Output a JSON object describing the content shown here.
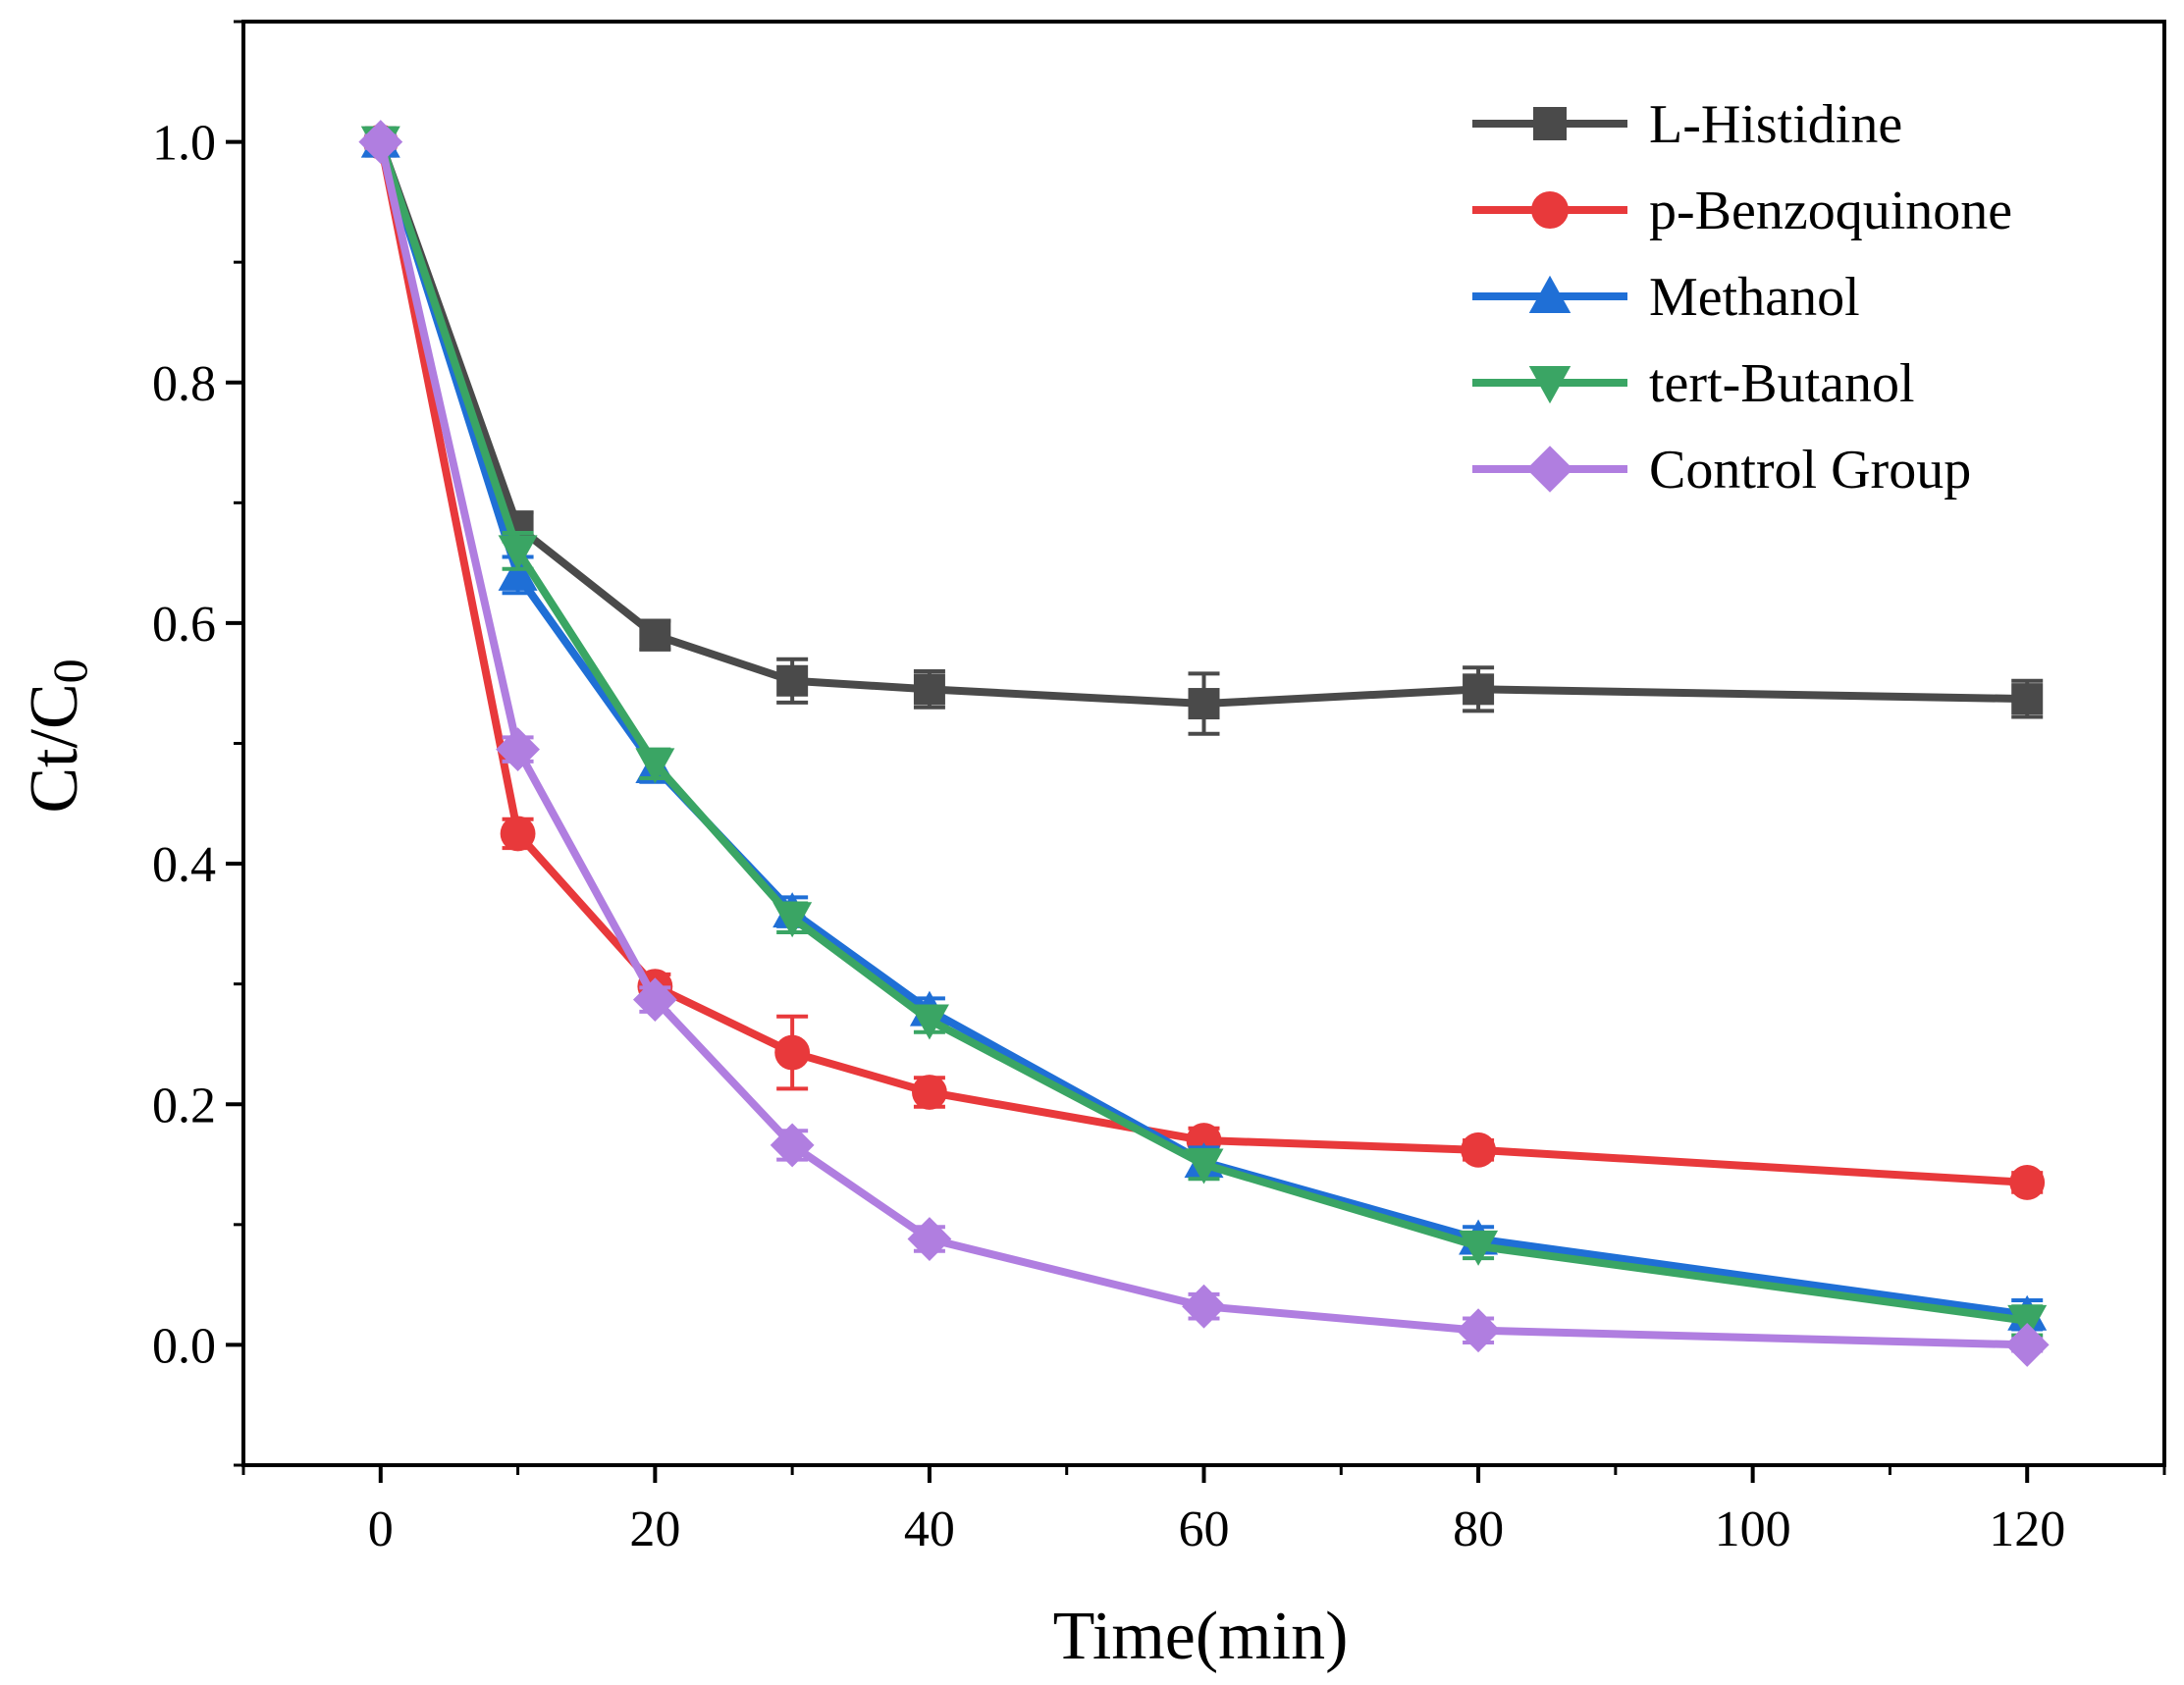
{
  "chart_data": {
    "type": "line",
    "title": "",
    "xlabel": "Time(min)",
    "ylabel": "Ct/C0",
    "ylabel_main": "Ct/C",
    "ylabel_sub": "0",
    "xlim": [
      -10,
      130
    ],
    "ylim": [
      -0.1,
      1.1
    ],
    "xticks": [
      0,
      20,
      40,
      60,
      80,
      100,
      120
    ],
    "yticks": [
      0.0,
      0.2,
      0.4,
      0.6,
      0.8,
      1.0
    ],
    "xtick_labels": [
      "0",
      "20",
      "40",
      "60",
      "80",
      "100",
      "120"
    ],
    "ytick_labels": [
      "0.0",
      "0.2",
      "0.4",
      "0.6",
      "0.8",
      "1.0"
    ],
    "grid": false,
    "legend_position": "top-right",
    "x": [
      0,
      10,
      20,
      30,
      40,
      60,
      80,
      120
    ],
    "series": [
      {
        "name": "L-Histidine",
        "color": "#4a4a4a",
        "marker": "square",
        "values": [
          1.0,
          0.68,
          0.59,
          0.552,
          0.545,
          0.533,
          0.545,
          0.537
        ],
        "errors": [
          0.005,
          0.012,
          0.012,
          0.018,
          0.015,
          0.025,
          0.018,
          0.015
        ]
      },
      {
        "name": "p-Benzoquinone",
        "color": "#e8393b",
        "marker": "circle",
        "values": [
          1.0,
          0.425,
          0.298,
          0.243,
          0.21,
          0.17,
          0.162,
          0.135
        ],
        "errors": [
          0.005,
          0.012,
          0.01,
          0.03,
          0.012,
          0.01,
          0.008,
          0.008
        ]
      },
      {
        "name": "Methanol",
        "color": "#1f6fd6",
        "marker": "triangle-up",
        "values": [
          1.0,
          0.64,
          0.48,
          0.36,
          0.278,
          0.152,
          0.088,
          0.025
        ],
        "errors": [
          0.005,
          0.015,
          0.012,
          0.012,
          0.01,
          0.012,
          0.01,
          0.012
        ]
      },
      {
        "name": "tert-Butanol",
        "color": "#3aa564",
        "marker": "triangle-down",
        "values": [
          1.0,
          0.66,
          0.483,
          0.355,
          0.27,
          0.15,
          0.082,
          0.02
        ],
        "errors": [
          0.005,
          0.015,
          0.012,
          0.012,
          0.01,
          0.012,
          0.01,
          0.012
        ]
      },
      {
        "name": "Control Group",
        "color": "#b07ee0",
        "marker": "diamond",
        "values": [
          1.0,
          0.495,
          0.287,
          0.166,
          0.088,
          0.032,
          0.012,
          0.0
        ],
        "errors": [
          0.005,
          0.01,
          0.01,
          0.012,
          0.01,
          0.01,
          0.01,
          0.005
        ]
      }
    ]
  }
}
